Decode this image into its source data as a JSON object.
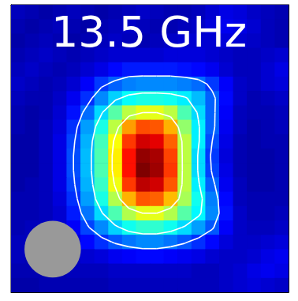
{
  "chart_data": {
    "type": "heatmap",
    "title": "13.5 GHz",
    "x": [
      0.75,
      2.25,
      3.75,
      5.25,
      6.75,
      8.25,
      9.75,
      11.25,
      12.75,
      14.25,
      15.75,
      17.25,
      18.75,
      20.25,
      21.75,
      23.25,
      24.75,
      26.25,
      27.75,
      29.25
    ],
    "y": [
      29.25,
      27.75,
      26.25,
      24.75,
      23.25,
      21.75,
      20.25,
      18.75,
      17.25,
      15.75,
      14.25,
      12.75,
      11.25,
      9.75,
      8.25,
      6.75,
      5.25,
      3.75,
      2.25,
      0.75
    ],
    "cells": [
      [
        0.06,
        0.05,
        0.04,
        0.05,
        0.06,
        0.05,
        0.04,
        0.05,
        0.06,
        0.07,
        0.06,
        0.05,
        0.05,
        0.06,
        0.08,
        0.1,
        0.09,
        0.07,
        0.06,
        0.05
      ],
      [
        0.05,
        0.04,
        0.05,
        0.06,
        0.05,
        0.04,
        0.05,
        0.06,
        0.07,
        0.06,
        0.05,
        0.05,
        0.06,
        0.07,
        0.09,
        0.11,
        0.1,
        0.08,
        0.06,
        0.05
      ],
      [
        0.04,
        0.05,
        0.06,
        0.05,
        0.04,
        0.05,
        0.06,
        0.07,
        0.06,
        0.05,
        0.06,
        0.07,
        0.08,
        0.08,
        0.08,
        0.09,
        0.08,
        0.07,
        0.06,
        0.05
      ],
      [
        0.05,
        0.06,
        0.07,
        0.06,
        0.05,
        0.06,
        0.07,
        0.08,
        0.08,
        0.08,
        0.08,
        0.09,
        0.09,
        0.09,
        0.08,
        0.07,
        0.06,
        0.06,
        0.07,
        0.08
      ],
      [
        0.06,
        0.07,
        0.06,
        0.05,
        0.06,
        0.08,
        0.1,
        0.13,
        0.15,
        0.15,
        0.15,
        0.15,
        0.14,
        0.13,
        0.11,
        0.08,
        0.06,
        0.06,
        0.08,
        0.1
      ],
      [
        0.07,
        0.06,
        0.05,
        0.06,
        0.08,
        0.12,
        0.18,
        0.22,
        0.25,
        0.26,
        0.26,
        0.26,
        0.25,
        0.23,
        0.18,
        0.12,
        0.07,
        0.06,
        0.08,
        0.09
      ],
      [
        0.06,
        0.05,
        0.05,
        0.07,
        0.11,
        0.17,
        0.26,
        0.33,
        0.38,
        0.4,
        0.4,
        0.39,
        0.36,
        0.31,
        0.22,
        0.13,
        0.07,
        0.05,
        0.06,
        0.07
      ],
      [
        0.05,
        0.04,
        0.05,
        0.08,
        0.14,
        0.23,
        0.34,
        0.46,
        0.56,
        0.6,
        0.6,
        0.56,
        0.45,
        0.34,
        0.22,
        0.12,
        0.06,
        0.05,
        0.05,
        0.06
      ],
      [
        0.05,
        0.04,
        0.06,
        0.09,
        0.17,
        0.28,
        0.4,
        0.56,
        0.72,
        0.8,
        0.79,
        0.7,
        0.52,
        0.36,
        0.22,
        0.11,
        0.06,
        0.04,
        0.05,
        0.06
      ],
      [
        0.04,
        0.04,
        0.06,
        0.1,
        0.19,
        0.3,
        0.44,
        0.62,
        0.82,
        0.92,
        0.9,
        0.78,
        0.56,
        0.36,
        0.2,
        0.1,
        0.05,
        0.04,
        0.05,
        0.05
      ],
      [
        0.04,
        0.04,
        0.06,
        0.1,
        0.2,
        0.31,
        0.45,
        0.64,
        0.86,
        0.98,
        0.96,
        0.81,
        0.56,
        0.34,
        0.18,
        0.09,
        0.05,
        0.04,
        0.04,
        0.05
      ],
      [
        0.04,
        0.04,
        0.06,
        0.1,
        0.2,
        0.31,
        0.45,
        0.64,
        0.86,
        1.0,
        0.97,
        0.82,
        0.56,
        0.34,
        0.19,
        0.1,
        0.05,
        0.04,
        0.04,
        0.05
      ],
      [
        0.04,
        0.05,
        0.06,
        0.1,
        0.19,
        0.3,
        0.43,
        0.61,
        0.82,
        0.94,
        0.92,
        0.79,
        0.56,
        0.36,
        0.22,
        0.11,
        0.06,
        0.04,
        0.04,
        0.05
      ],
      [
        0.05,
        0.05,
        0.06,
        0.09,
        0.17,
        0.28,
        0.4,
        0.55,
        0.7,
        0.79,
        0.78,
        0.69,
        0.54,
        0.39,
        0.25,
        0.13,
        0.06,
        0.05,
        0.05,
        0.05
      ],
      [
        0.05,
        0.05,
        0.06,
        0.08,
        0.15,
        0.24,
        0.34,
        0.45,
        0.55,
        0.6,
        0.6,
        0.55,
        0.46,
        0.37,
        0.26,
        0.14,
        0.07,
        0.05,
        0.05,
        0.06
      ],
      [
        0.05,
        0.06,
        0.06,
        0.08,
        0.12,
        0.19,
        0.26,
        0.33,
        0.39,
        0.42,
        0.42,
        0.39,
        0.34,
        0.28,
        0.21,
        0.12,
        0.07,
        0.06,
        0.06,
        0.07
      ],
      [
        0.06,
        0.06,
        0.06,
        0.07,
        0.09,
        0.13,
        0.17,
        0.21,
        0.24,
        0.26,
        0.26,
        0.24,
        0.21,
        0.17,
        0.13,
        0.09,
        0.07,
        0.07,
        0.08,
        0.09
      ],
      [
        0.06,
        0.05,
        0.05,
        0.06,
        0.07,
        0.08,
        0.09,
        0.11,
        0.12,
        0.13,
        0.13,
        0.12,
        0.11,
        0.1,
        0.08,
        0.07,
        0.07,
        0.08,
        0.1,
        0.11
      ],
      [
        0.05,
        0.05,
        0.05,
        0.05,
        0.06,
        0.06,
        0.06,
        0.07,
        0.07,
        0.07,
        0.07,
        0.07,
        0.07,
        0.06,
        0.06,
        0.07,
        0.08,
        0.1,
        0.11,
        0.1
      ],
      [
        0.04,
        0.04,
        0.05,
        0.05,
        0.05,
        0.05,
        0.05,
        0.06,
        0.06,
        0.06,
        0.06,
        0.06,
        0.06,
        0.06,
        0.06,
        0.07,
        0.08,
        0.09,
        0.08,
        0.07
      ]
    ],
    "xlim": [
      0,
      30
    ],
    "ylim": [
      0,
      30
    ],
    "xticks": [
      0,
      1,
      2,
      3,
      4,
      5,
      6,
      7,
      8,
      9,
      10,
      11,
      12,
      13,
      14,
      15,
      16,
      17,
      18,
      19,
      20,
      21,
      22,
      23,
      24,
      25,
      26,
      27,
      28,
      29,
      30
    ],
    "yticks": [
      0,
      1,
      2,
      3,
      4,
      5,
      6,
      7,
      8,
      9,
      10,
      11,
      12,
      13,
      14,
      15,
      16,
      17,
      18,
      19,
      20,
      21,
      22,
      23,
      24,
      25,
      26,
      27,
      28,
      29,
      30
    ],
    "color_range": [
      0,
      1
    ],
    "contour_levels": [
      0.2,
      0.35,
      0.6
    ],
    "beam": {
      "x": 4.5,
      "y": 4.5,
      "diameter": 6.1
    },
    "tick_labels": false,
    "grid": false
  }
}
